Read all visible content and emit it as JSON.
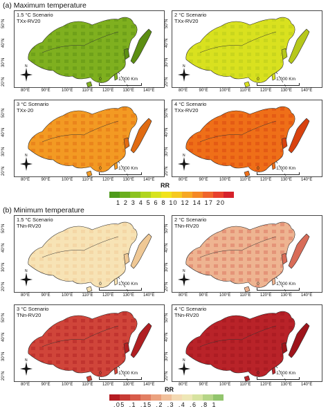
{
  "sections": [
    {
      "title": "(a) Maximum temperature",
      "panels": [
        {
          "scenario": "1.5 °C Scenario",
          "index": "TXx-RV20",
          "fill": "#7fb01f",
          "dark": "#5c8e12"
        },
        {
          "scenario": "2 °C Scenario",
          "index": "TXx-RV20",
          "fill": "#d9e11f",
          "dark": "#b6c81a"
        },
        {
          "scenario": "3 °C Scenario",
          "index": "TXx-20",
          "fill": "#f39a23",
          "dark": "#e06b12"
        },
        {
          "scenario": "4 °C Scenario",
          "index": "TXx-RV20",
          "fill": "#ef6f18",
          "dark": "#d8420f"
        }
      ],
      "legend": {
        "title": "RR",
        "colors": [
          "#4e9a1b",
          "#6aae1e",
          "#8cc320",
          "#b0d51f",
          "#d7e31e",
          "#f1e31b",
          "#f6c91f",
          "#f7a823",
          "#f58825",
          "#f0652a",
          "#e8402b",
          "#d6212a"
        ],
        "ticks": "1  2  3  4  5  6  8  10 12 14 17 20"
      }
    },
    {
      "title": "(b) Minimum temperature",
      "panels": [
        {
          "scenario": "1.5 °C Scenario",
          "index": "TNn-RV20",
          "fill": "#f7e3b5",
          "dark": "#efc895"
        },
        {
          "scenario": "2 °C Scenario",
          "index": "TNn-RV20",
          "fill": "#eeb491",
          "dark": "#d86c58"
        },
        {
          "scenario": "3 °C Scenario",
          "index": "TNn-RV20",
          "fill": "#d0453a",
          "dark": "#b01f22"
        },
        {
          "scenario": "4 °C Scenario",
          "index": "TNn-RV20",
          "fill": "#b92329",
          "dark": "#9e141b"
        }
      ],
      "legend": {
        "title": "RR",
        "colors": [
          "#b51c22",
          "#c83b35",
          "#d85b4a",
          "#e27f63",
          "#eba27f",
          "#f1c19c",
          "#f4dab3",
          "#eee7b6",
          "#d7e3a0",
          "#b5d587",
          "#92c56d"
        ],
        "ticks": ".05 .1 .15 .2  .3  .4  .6  .8  1"
      }
    }
  ],
  "map": {
    "lat_labels": [
      "50°N",
      "40°N",
      "30°N",
      "20°N"
    ],
    "lon_labels": [
      "80°E",
      "90°E",
      "100°E",
      "110°E",
      "120°E",
      "130°E",
      "140°E"
    ],
    "scale_zero": "0",
    "scale_label": "1,000 Km",
    "north_label": "N"
  },
  "colors": {
    "border": "#444444",
    "coast": "#2a2a2a"
  }
}
